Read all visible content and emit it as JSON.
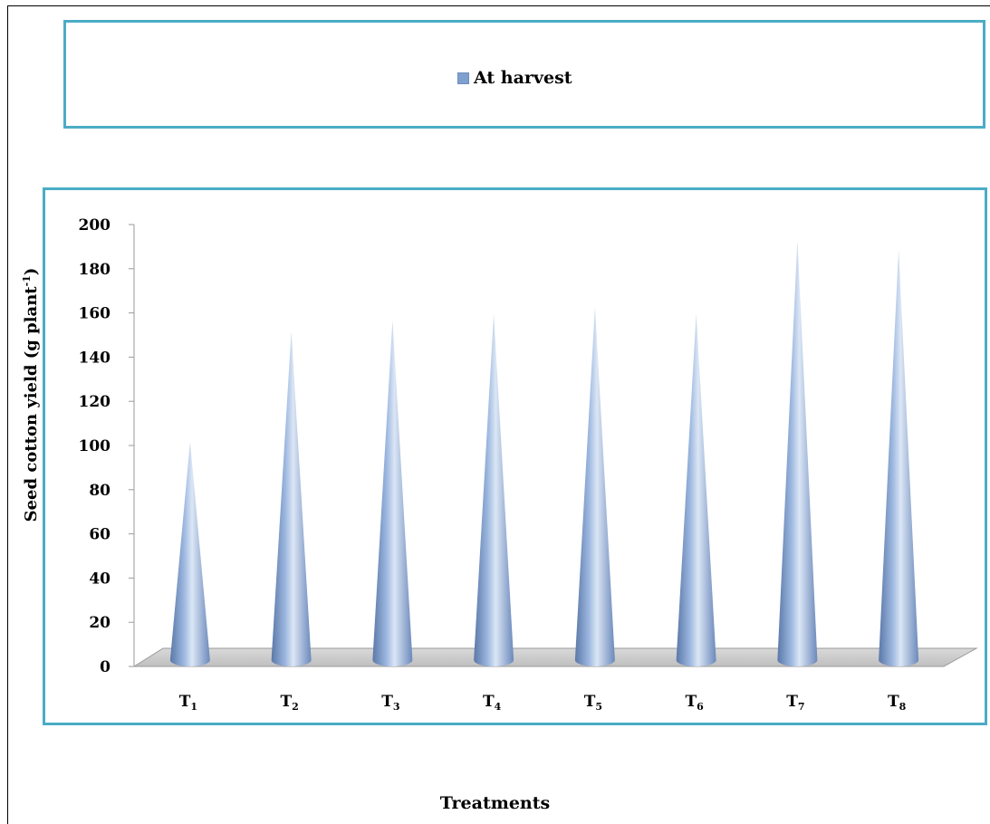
{
  "chart_data": {
    "type": "bar",
    "categories": [
      "T1",
      "T2",
      "T3",
      "T4",
      "T5",
      "T6",
      "T7",
      "T8"
    ],
    "category_labels": [
      {
        "main": "T",
        "sub": "1"
      },
      {
        "main": "T",
        "sub": "2"
      },
      {
        "main": "T",
        "sub": "3"
      },
      {
        "main": "T",
        "sub": "4"
      },
      {
        "main": "T",
        "sub": "5"
      },
      {
        "main": "T",
        "sub": "6"
      },
      {
        "main": "T",
        "sub": "7"
      },
      {
        "main": "T",
        "sub": "8"
      }
    ],
    "series": [
      {
        "name": "At harvest",
        "values": [
          100,
          150,
          155,
          158,
          161,
          158,
          191,
          187
        ]
      }
    ],
    "xlabel": "Treatments",
    "ylabel": "Seed cotton yield (g plant",
    "ylabel_sup": "-1",
    "ylabel_close": ")",
    "ylim": [
      0,
      200
    ],
    "yticks": [
      "0",
      "20",
      "40",
      "60",
      "80",
      "100",
      "120",
      "140",
      "160",
      "180",
      "200"
    ],
    "bar_shape": "cone",
    "legend_position": "top",
    "grid": false,
    "colors": {
      "bar": "#7f9fcf",
      "bar_dark": "#5a78a8",
      "bar_light": "#dbe6f5",
      "frame": "#4bacc6"
    }
  }
}
